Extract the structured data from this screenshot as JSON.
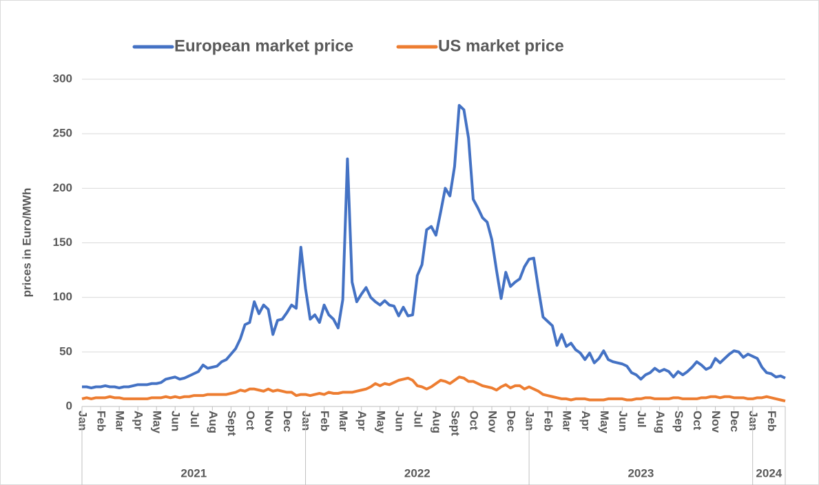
{
  "chart_data": {
    "type": "line",
    "y_label": "prices in Euro/MWh",
    "legend": "top",
    "grid": true,
    "ylim": [
      0,
      300
    ],
    "yticks": [
      0,
      50,
      100,
      150,
      200,
      250,
      300
    ],
    "categories": [
      "Jan",
      null,
      null,
      null,
      "Feb",
      null,
      null,
      null,
      "Mar",
      null,
      null,
      null,
      "Apr",
      null,
      null,
      null,
      "May",
      null,
      null,
      null,
      "Jun",
      null,
      null,
      null,
      "Jul",
      null,
      null,
      null,
      "Aug",
      null,
      null,
      null,
      "Sept",
      null,
      null,
      null,
      "Oct",
      null,
      null,
      null,
      "Nov",
      null,
      null,
      null,
      "Dec",
      null,
      null,
      null,
      "Jan",
      null,
      null,
      null,
      "Feb",
      null,
      null,
      null,
      "Mar",
      null,
      null,
      null,
      "Apr",
      null,
      null,
      null,
      "May",
      null,
      null,
      null,
      "Jun",
      null,
      null,
      null,
      "Jul",
      null,
      null,
      null,
      "Aug",
      null,
      null,
      null,
      "Sept",
      null,
      null,
      null,
      "Oct",
      null,
      null,
      null,
      "Nov",
      null,
      null,
      null,
      "Dec",
      null,
      null,
      null,
      "Jan",
      null,
      null,
      null,
      "Feb",
      null,
      null,
      null,
      "Mar",
      null,
      null,
      null,
      "Apr",
      null,
      null,
      null,
      "May",
      null,
      null,
      null,
      "Jun",
      null,
      null,
      null,
      "Jul",
      null,
      null,
      null,
      "Aug",
      null,
      null,
      null,
      "Sep",
      null,
      null,
      null,
      "Oct",
      null,
      null,
      null,
      "Nov",
      null,
      null,
      null,
      "Dec",
      null,
      null,
      null,
      "Jan",
      null,
      null,
      null,
      "Feb",
      null,
      null,
      null
    ],
    "groups": [
      {
        "label": "2021",
        "span": 48
      },
      {
        "label": "2022",
        "span": 48
      },
      {
        "label": "2023",
        "span": 48
      },
      {
        "label": "2024",
        "span": 8
      }
    ],
    "series": [
      {
        "name": "European market price",
        "color": "#4472c4",
        "values": [
          18,
          18,
          17,
          18,
          18,
          19,
          18,
          18,
          17,
          18,
          18,
          19,
          20,
          20,
          20,
          21,
          21,
          22,
          25,
          26,
          27,
          25,
          26,
          28,
          30,
          32,
          38,
          35,
          36,
          37,
          41,
          43,
          48,
          53,
          62,
          75,
          77,
          96,
          85,
          93,
          89,
          66,
          79,
          80,
          86,
          93,
          90,
          146,
          108,
          80,
          84,
          77,
          93,
          84,
          80,
          72,
          98,
          227,
          114,
          96,
          103,
          109,
          100,
          96,
          93,
          97,
          93,
          92,
          83,
          91,
          83,
          84,
          120,
          130,
          162,
          165,
          157,
          178,
          200,
          193,
          220,
          276,
          272,
          246,
          190,
          182,
          173,
          169,
          153,
          125,
          99,
          123,
          110,
          114,
          117,
          128,
          135,
          136,
          108,
          82,
          78,
          74,
          56,
          66,
          55,
          58,
          52,
          49,
          43,
          49,
          40,
          44,
          51,
          43,
          41,
          40,
          39,
          37,
          31,
          29,
          25,
          29,
          31,
          35,
          32,
          34,
          32,
          27,
          32,
          29,
          32,
          36,
          41,
          38,
          34,
          36,
          44,
          40,
          44,
          48,
          51,
          50,
          45,
          48,
          46,
          44,
          36,
          31,
          30,
          27,
          28,
          26
        ]
      },
      {
        "name": "US market price",
        "color": "#ed7d31",
        "values": [
          7,
          8,
          7,
          8,
          8,
          8,
          9,
          8,
          8,
          7,
          7,
          7,
          7,
          7,
          7,
          8,
          8,
          8,
          9,
          8,
          9,
          8,
          9,
          9,
          10,
          10,
          10,
          11,
          11,
          11,
          11,
          11,
          12,
          13,
          15,
          14,
          16,
          16,
          15,
          14,
          16,
          14,
          15,
          14,
          13,
          13,
          10,
          11,
          11,
          10,
          11,
          12,
          11,
          13,
          12,
          12,
          13,
          13,
          13,
          14,
          15,
          16,
          18,
          21,
          19,
          21,
          20,
          22,
          24,
          25,
          26,
          24,
          19,
          18,
          16,
          18,
          21,
          24,
          23,
          21,
          24,
          27,
          26,
          23,
          23,
          21,
          19,
          18,
          17,
          15,
          18,
          20,
          17,
          19,
          19,
          16,
          18,
          16,
          14,
          11,
          10,
          9,
          8,
          7,
          7,
          6,
          7,
          7,
          7,
          6,
          6,
          6,
          6,
          7,
          7,
          7,
          7,
          6,
          6,
          7,
          7,
          8,
          8,
          7,
          7,
          7,
          7,
          8,
          8,
          7,
          7,
          7,
          7,
          8,
          8,
          9,
          9,
          8,
          9,
          9,
          8,
          8,
          8,
          7,
          7,
          8,
          8,
          9,
          8,
          7,
          6,
          5
        ]
      }
    ]
  }
}
